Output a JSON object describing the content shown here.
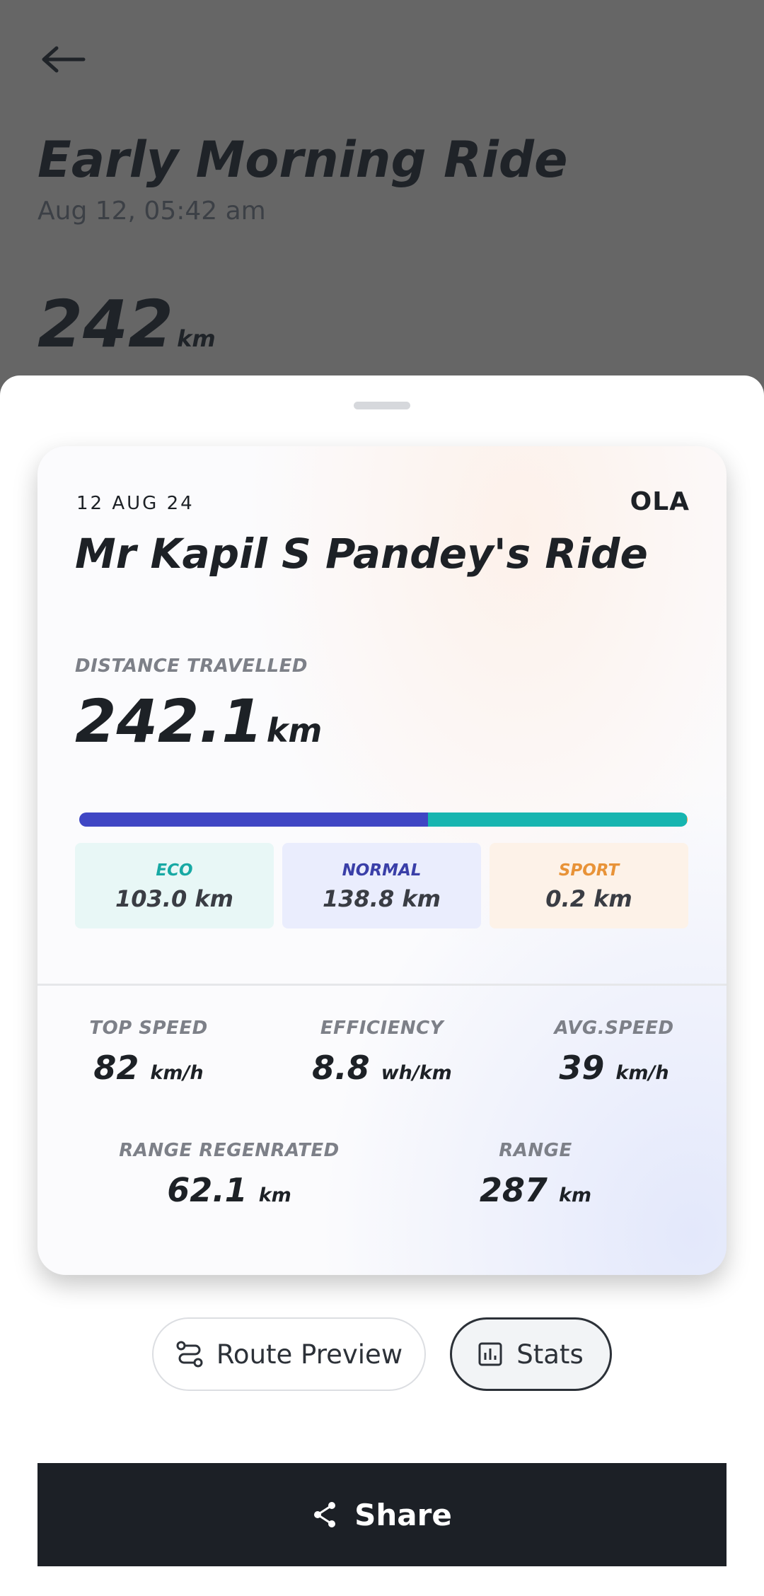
{
  "background": {
    "title": "Early Morning Ride",
    "datetime": "Aug 12, 05:42 am",
    "distance": "242",
    "unit": "km"
  },
  "card": {
    "date": "12 AUG 24",
    "brand": "OLA",
    "title": "Mr Kapil S Pandey's Ride",
    "distance_label": "DISTANCE TRAVELLED",
    "distance": "242.1",
    "distance_unit": "km",
    "modes": [
      {
        "name": "ECO",
        "distance": "103.0",
        "unit": "km",
        "color": "#17b5b0",
        "bg": "#e8f7f6",
        "text_color": "#17a9a4"
      },
      {
        "name": "NORMAL",
        "distance": "138.8",
        "unit": "km",
        "color": "#3f46c4",
        "bg": "#eaedfd",
        "text_color": "#3a3fa8"
      },
      {
        "name": "SPORT",
        "distance": "0.2",
        "unit": "km",
        "color": "#ee9a3c",
        "bg": "#fdf2e8",
        "text_color": "#e89338"
      }
    ],
    "stats": [
      {
        "label": "TOP SPEED",
        "value": "82",
        "unit": "km/h"
      },
      {
        "label": "EFFICIENCY",
        "value": "8.8",
        "unit": "wh/km"
      },
      {
        "label": "AVG.SPEED",
        "value": "39",
        "unit": "km/h"
      },
      {
        "label": "RANGE REGENRATED",
        "value": "62.1",
        "unit": "km"
      },
      {
        "label": "RANGE",
        "value": "287",
        "unit": "km"
      }
    ]
  },
  "buttons": {
    "route": "Route Preview",
    "stats": "Stats",
    "share": "Share"
  }
}
